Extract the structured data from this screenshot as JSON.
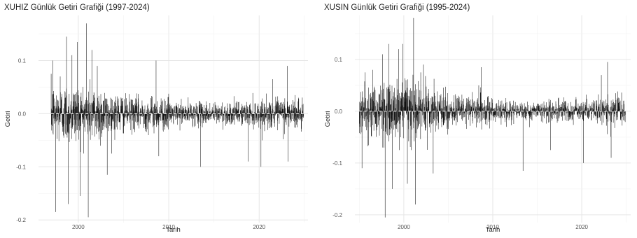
{
  "chart_data": [
    {
      "type": "line",
      "title": "XUHIZ Günlük Getiri Grafiği (1997-2024)",
      "xlabel": "Tarih",
      "ylabel": "Getiri",
      "xlim": [
        1995.6,
        2025.4
      ],
      "ylim": [
        -0.205,
        0.185
      ],
      "x_ticks": [
        2000,
        2010,
        2020
      ],
      "x_tick_labels": [
        "2000",
        "2010",
        "2020"
      ],
      "y_ticks": [
        -0.2,
        -0.1,
        0.0,
        0.1
      ],
      "y_tick_labels": [
        "-0.2",
        "-0.1",
        "0.0",
        "0.1"
      ],
      "grid": true,
      "reference_line": {
        "y": 0.0,
        "style": "dashed",
        "color": "#ffffff"
      },
      "series": [
        {
          "x_start": 1997.0,
          "x_end": 2024.9,
          "spikes": [
            {
              "x": 1997.2,
              "y": 0.1
            },
            {
              "x": 1997.5,
              "y": -0.185
            },
            {
              "x": 1998.0,
              "y": 0.07
            },
            {
              "x": 1998.7,
              "y": 0.145
            },
            {
              "x": 1998.9,
              "y": -0.17
            },
            {
              "x": 1999.3,
              "y": 0.11
            },
            {
              "x": 1999.9,
              "y": 0.135
            },
            {
              "x": 2000.2,
              "y": -0.155
            },
            {
              "x": 2000.9,
              "y": 0.17
            },
            {
              "x": 2001.1,
              "y": -0.195
            },
            {
              "x": 2001.5,
              "y": 0.12
            },
            {
              "x": 2002.1,
              "y": 0.09
            },
            {
              "x": 2003.2,
              "y": -0.115
            },
            {
              "x": 2008.6,
              "y": 0.1
            },
            {
              "x": 2008.9,
              "y": -0.08
            },
            {
              "x": 2013.5,
              "y": -0.1
            },
            {
              "x": 2018.8,
              "y": -0.09
            },
            {
              "x": 2020.2,
              "y": -0.1
            },
            {
              "x": 2021.5,
              "y": 0.065
            },
            {
              "x": 2023.1,
              "y": 0.09
            },
            {
              "x": 2023.2,
              "y": -0.09
            }
          ]
        }
      ]
    },
    {
      "type": "line",
      "title": "XUSIN Günlük Getiri Grafiği (1995-2024)",
      "xlabel": "Tarih",
      "ylabel": "Getiri",
      "xlim": [
        1994.5,
        2025.5
      ],
      "ylim": [
        -0.215,
        0.185
      ],
      "x_ticks": [
        2000,
        2010,
        2020
      ],
      "x_tick_labels": [
        "2000",
        "2010",
        "2020"
      ],
      "y_ticks": [
        -0.2,
        -0.1,
        0.0,
        0.1
      ],
      "y_tick_labels": [
        "-0.2",
        "-0.1",
        "0.0",
        "0.1"
      ],
      "grid": true,
      "reference_line": {
        "y": 0.0,
        "style": "dashed",
        "color": "#ffffff"
      },
      "series": [
        {
          "x_start": 1995.0,
          "x_end": 2024.9,
          "spikes": [
            {
              "x": 1995.3,
              "y": -0.11
            },
            {
              "x": 1996.5,
              "y": 0.08
            },
            {
              "x": 1997.6,
              "y": 0.11
            },
            {
              "x": 1997.9,
              "y": -0.205
            },
            {
              "x": 1998.3,
              "y": 0.13
            },
            {
              "x": 1998.7,
              "y": -0.15
            },
            {
              "x": 1999.4,
              "y": 0.12
            },
            {
              "x": 1999.9,
              "y": 0.13
            },
            {
              "x": 2000.4,
              "y": -0.14
            },
            {
              "x": 2001.1,
              "y": 0.18
            },
            {
              "x": 2001.3,
              "y": -0.18
            },
            {
              "x": 2002.2,
              "y": 0.09
            },
            {
              "x": 2003.3,
              "y": -0.12
            },
            {
              "x": 2008.7,
              "y": 0.085
            },
            {
              "x": 2013.4,
              "y": -0.115
            },
            {
              "x": 2016.5,
              "y": -0.075
            },
            {
              "x": 2020.2,
              "y": -0.1
            },
            {
              "x": 2022.2,
              "y": 0.07
            },
            {
              "x": 2022.9,
              "y": 0.095
            },
            {
              "x": 2023.3,
              "y": -0.09
            }
          ]
        }
      ]
    }
  ]
}
